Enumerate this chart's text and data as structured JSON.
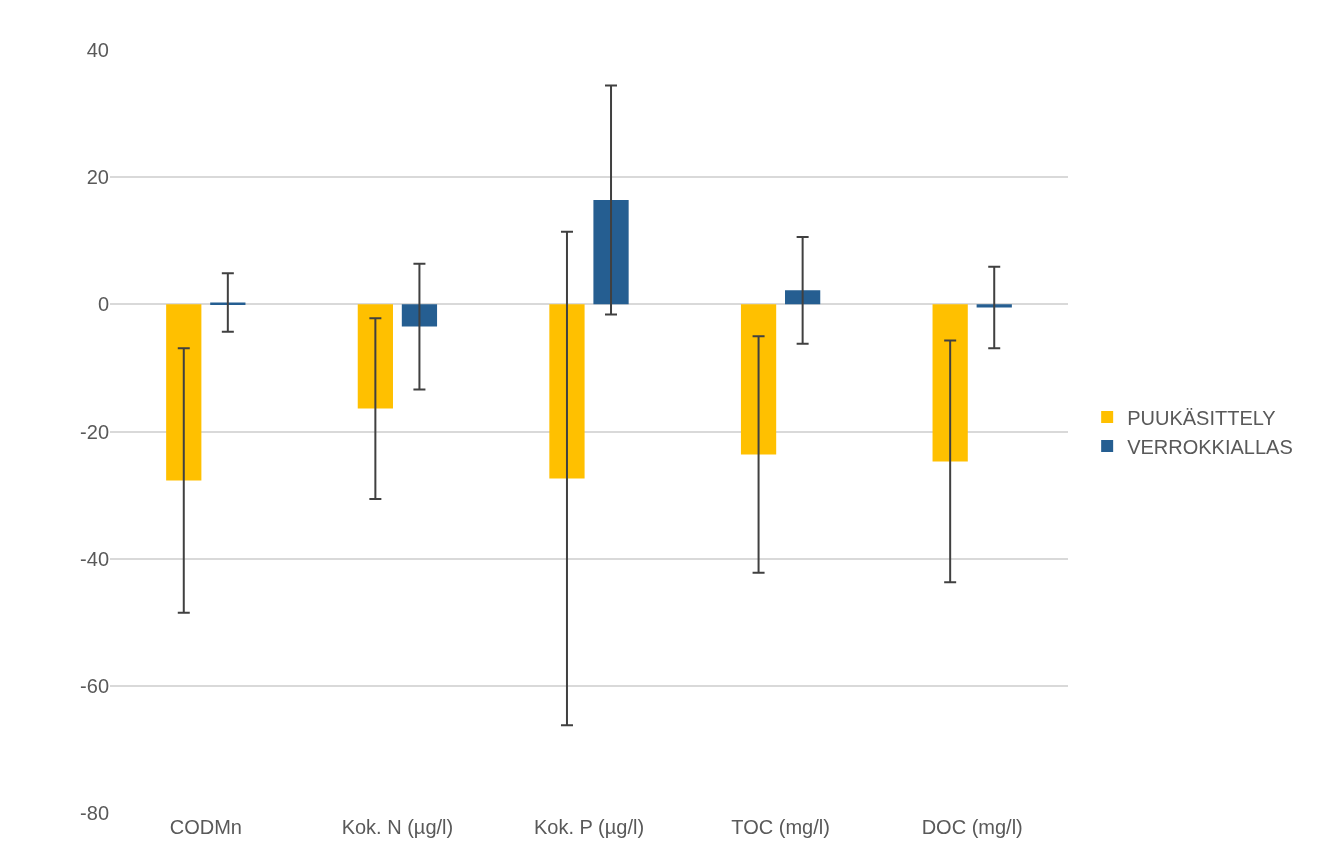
{
  "chart_data": {
    "type": "bar",
    "categories": [
      "CODMn",
      "Kok. N (µg/l)",
      "Kok. P (µg/l)",
      "TOC (mg/l)",
      "DOC (mg/l)"
    ],
    "series": [
      {
        "name": "PUUKÄSITTELY",
        "color": "#ffc000",
        "values": [
          -27.7,
          -16.4,
          -27.4,
          -23.6,
          -24.7
        ],
        "errors": [
          20.8,
          14.2,
          38.8,
          18.6,
          19.0
        ]
      },
      {
        "name": "VERROKKIALLAS",
        "color": "#255e91",
        "values": [
          0.3,
          -3.5,
          16.4,
          2.2,
          -0.5
        ],
        "errors": [
          4.6,
          9.9,
          18.0,
          8.4,
          6.4
        ]
      }
    ],
    "ylim": [
      -80,
      40
    ],
    "yticks": [
      -80,
      -60,
      -40,
      -20,
      0,
      20,
      40
    ],
    "grid": "y",
    "legend": "right"
  }
}
